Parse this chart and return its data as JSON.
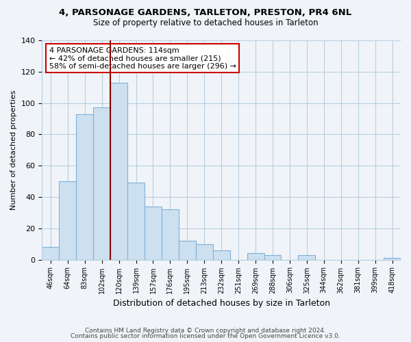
{
  "title": "4, PARSONAGE GARDENS, TARLETON, PRESTON, PR4 6NL",
  "subtitle": "Size of property relative to detached houses in Tarleton",
  "xlabel": "Distribution of detached houses by size in Tarleton",
  "ylabel": "Number of detached properties",
  "categories": [
    "46sqm",
    "64sqm",
    "83sqm",
    "102sqm",
    "120sqm",
    "139sqm",
    "157sqm",
    "176sqm",
    "195sqm",
    "213sqm",
    "232sqm",
    "251sqm",
    "269sqm",
    "288sqm",
    "306sqm",
    "325sqm",
    "344sqm",
    "362sqm",
    "381sqm",
    "399sqm",
    "418sqm"
  ],
  "values": [
    8,
    50,
    93,
    97,
    113,
    49,
    34,
    32,
    12,
    10,
    6,
    0,
    4,
    3,
    0,
    3,
    0,
    0,
    0,
    0,
    1
  ],
  "bar_color": "#cce0f0",
  "bar_edge_color": "#7fb0d8",
  "vline_index": 3,
  "vline_color": "#8b0000",
  "annotation_text": "4 PARSONAGE GARDENS: 114sqm\n← 42% of detached houses are smaller (215)\n58% of semi-detached houses are larger (296) →",
  "annotation_box_color": "#ffffff",
  "annotation_box_edge_color": "#cc0000",
  "ylim": [
    0,
    140
  ],
  "yticks": [
    0,
    20,
    40,
    60,
    80,
    100,
    120,
    140
  ],
  "footer1": "Contains HM Land Registry data © Crown copyright and database right 2024.",
  "footer2": "Contains public sector information licensed under the Open Government Licence v3.0.",
  "background_color": "#f0f4f8",
  "plot_bg_color": "#f0f4f8",
  "grid_color": "#b8cfe0"
}
